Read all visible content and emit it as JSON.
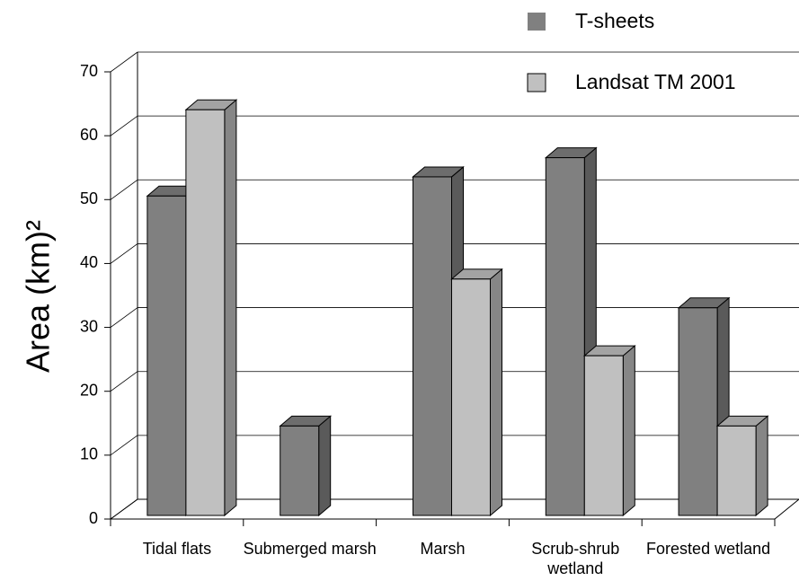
{
  "chart_data": {
    "type": "bar3d",
    "y_label": "Area (km)²",
    "categories": [
      "Tidal flats",
      "Submerged marsh",
      "Marsh",
      "Scrub-shrub wetland",
      "Forested wetland"
    ],
    "series": [
      {
        "name": "T-sheets",
        "color": "#808080",
        "values": [
          50,
          14,
          53,
          56,
          32.5
        ]
      },
      {
        "name": "Landsat TM 2001",
        "color": "#c0c0c0",
        "values": [
          63.5,
          null,
          37,
          25,
          14
        ]
      }
    ],
    "ylim": [
      0,
      70
    ],
    "yticks": [
      0,
      10,
      20,
      30,
      40,
      50,
      60,
      70
    ],
    "grid": true,
    "legend": "top-right"
  }
}
